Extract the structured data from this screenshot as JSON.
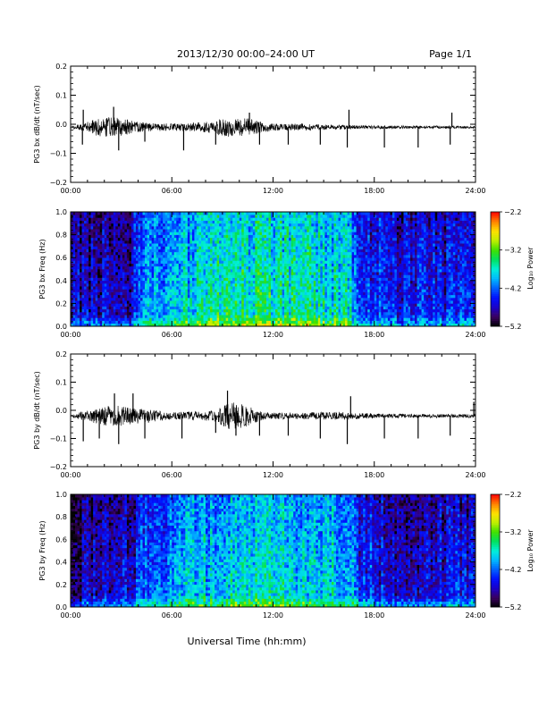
{
  "header": {
    "date_range": "2013/12/30  00:00–24:00 UT",
    "page": "Page 1/1"
  },
  "xlabel": "Universal Time (hh:mm)",
  "colors": {
    "axis": "#000000",
    "trace": "#000000",
    "background": "#ffffff"
  },
  "colorscale": [
    "#000000",
    "#3a0060",
    "#1a00c8",
    "#0010ff",
    "#0060ff",
    "#00b8ff",
    "#00f0d8",
    "#00e060",
    "#40e000",
    "#c0f000",
    "#ffe000",
    "#ff8000",
    "#ff0000"
  ],
  "chart_data": [
    {
      "type": "line",
      "ylabel": "PG3 bx dB/dt (nT/sec)",
      "x_ticks": [
        "00:00",
        "06:00",
        "12:00",
        "18:00",
        "24:00"
      ],
      "xlim": [
        0,
        24
      ],
      "ylim": [
        -0.2,
        0.2
      ],
      "y_ticks": [
        "0.2",
        "0.1",
        "0.0",
        "−0.1",
        "−0.2"
      ],
      "baseline": -0.01,
      "noise_envelope": [
        {
          "x": 0.0,
          "amp": 0.004
        },
        {
          "x": 0.7,
          "amp": 0.012
        },
        {
          "x": 1.5,
          "amp": 0.03
        },
        {
          "x": 2.5,
          "amp": 0.035
        },
        {
          "x": 3.5,
          "amp": 0.025
        },
        {
          "x": 4.5,
          "amp": 0.015
        },
        {
          "x": 6.0,
          "amp": 0.012
        },
        {
          "x": 8.0,
          "amp": 0.018
        },
        {
          "x": 9.5,
          "amp": 0.035
        },
        {
          "x": 10.5,
          "amp": 0.03
        },
        {
          "x": 12.0,
          "amp": 0.012
        },
        {
          "x": 14.0,
          "amp": 0.012
        },
        {
          "x": 16.0,
          "amp": 0.008
        },
        {
          "x": 18.0,
          "amp": 0.006
        },
        {
          "x": 24.0,
          "amp": 0.004
        }
      ],
      "spikes": [
        {
          "x": 0.7,
          "y": -0.07
        },
        {
          "x": 0.75,
          "y": 0.05
        },
        {
          "x": 2.55,
          "y": 0.06
        },
        {
          "x": 2.85,
          "y": -0.09
        },
        {
          "x": 4.4,
          "y": -0.06
        },
        {
          "x": 6.7,
          "y": -0.09
        },
        {
          "x": 8.6,
          "y": -0.07
        },
        {
          "x": 10.6,
          "y": 0.04
        },
        {
          "x": 11.2,
          "y": -0.07
        },
        {
          "x": 12.9,
          "y": -0.07
        },
        {
          "x": 14.8,
          "y": -0.07
        },
        {
          "x": 16.4,
          "y": -0.08
        },
        {
          "x": 16.5,
          "y": 0.05
        },
        {
          "x": 18.6,
          "y": -0.08
        },
        {
          "x": 20.6,
          "y": -0.08
        },
        {
          "x": 22.5,
          "y": -0.07
        },
        {
          "x": 22.6,
          "y": 0.04
        }
      ]
    },
    {
      "type": "heatmap",
      "ylabel": "PG3 bx Freq (Hz)",
      "colorbar_label": "Log₁₀ Power",
      "x_ticks": [
        "00:00",
        "06:00",
        "12:00",
        "18:00",
        "24:00"
      ],
      "xlim": [
        0,
        24
      ],
      "ylim": [
        0,
        1.0
      ],
      "y_ticks": [
        "1.0",
        "0.8",
        "0.6",
        "0.4",
        "0.2",
        "0.0"
      ],
      "colorbar_range": [
        -5.2,
        -2.2
      ],
      "colorbar_ticks": [
        "−2.2",
        "−3.2",
        "−4.2",
        "−5.2"
      ],
      "power_profile": [
        {
          "x": 0.0,
          "level": -4.7
        },
        {
          "x": 3.5,
          "level": -4.6
        },
        {
          "x": 4.0,
          "level": -4.1
        },
        {
          "x": 6.0,
          "level": -3.9
        },
        {
          "x": 9.0,
          "level": -3.55
        },
        {
          "x": 12.0,
          "level": -3.55
        },
        {
          "x": 16.5,
          "level": -3.7
        },
        {
          "x": 17.0,
          "level": -4.2
        },
        {
          "x": 20.0,
          "level": -4.5
        },
        {
          "x": 24.0,
          "level": -4.4
        }
      ]
    },
    {
      "type": "line",
      "ylabel": "PG3 by dB/dt (nT/sec)",
      "x_ticks": [
        "00:00",
        "06:00",
        "12:00",
        "18:00",
        "24:00"
      ],
      "xlim": [
        0,
        24
      ],
      "ylim": [
        -0.2,
        0.2
      ],
      "y_ticks": [
        "0.2",
        "0.1",
        "0.0",
        "−0.1",
        "−0.2"
      ],
      "baseline": -0.02,
      "noise_envelope": [
        {
          "x": 0.0,
          "amp": 0.005
        },
        {
          "x": 1.0,
          "amp": 0.02
        },
        {
          "x": 2.5,
          "amp": 0.04
        },
        {
          "x": 3.5,
          "amp": 0.03
        },
        {
          "x": 4.5,
          "amp": 0.025
        },
        {
          "x": 6.0,
          "amp": 0.012
        },
        {
          "x": 8.5,
          "amp": 0.02
        },
        {
          "x": 9.5,
          "amp": 0.05
        },
        {
          "x": 10.3,
          "amp": 0.04
        },
        {
          "x": 11.5,
          "amp": 0.012
        },
        {
          "x": 14.0,
          "amp": 0.012
        },
        {
          "x": 16.0,
          "amp": 0.015
        },
        {
          "x": 18.0,
          "amp": 0.008
        },
        {
          "x": 24.0,
          "amp": 0.006
        }
      ],
      "spikes": [
        {
          "x": 0.75,
          "y": -0.11
        },
        {
          "x": 1.7,
          "y": -0.1
        },
        {
          "x": 2.6,
          "y": 0.06
        },
        {
          "x": 2.85,
          "y": -0.12
        },
        {
          "x": 3.7,
          "y": 0.06
        },
        {
          "x": 4.4,
          "y": -0.1
        },
        {
          "x": 6.6,
          "y": -0.1
        },
        {
          "x": 8.6,
          "y": -0.08
        },
        {
          "x": 9.3,
          "y": 0.07
        },
        {
          "x": 9.8,
          "y": -0.09
        },
        {
          "x": 11.2,
          "y": -0.09
        },
        {
          "x": 12.9,
          "y": -0.09
        },
        {
          "x": 14.8,
          "y": -0.1
        },
        {
          "x": 16.4,
          "y": -0.12
        },
        {
          "x": 16.6,
          "y": 0.05
        },
        {
          "x": 18.6,
          "y": -0.1
        },
        {
          "x": 20.6,
          "y": -0.1
        },
        {
          "x": 22.5,
          "y": -0.09
        },
        {
          "x": 23.9,
          "y": 0.03
        }
      ]
    },
    {
      "type": "heatmap",
      "ylabel": "PG3 by Freq (Hz)",
      "colorbar_label": "Log₁₀ Power",
      "x_ticks": [
        "00:00",
        "06:00",
        "12:00",
        "18:00",
        "24:00"
      ],
      "xlim": [
        0,
        24
      ],
      "ylim": [
        0,
        1.0
      ],
      "y_ticks": [
        "1.0",
        "0.8",
        "0.6",
        "0.4",
        "0.2",
        "0.0"
      ],
      "colorbar_range": [
        -5.2,
        -2.2
      ],
      "colorbar_ticks": [
        "−2.2",
        "−3.2",
        "−4.2",
        "−5.2"
      ],
      "power_profile": [
        {
          "x": 0.0,
          "level": -4.8
        },
        {
          "x": 3.5,
          "level": -4.6
        },
        {
          "x": 4.5,
          "level": -4.2
        },
        {
          "x": 6.0,
          "level": -4.0
        },
        {
          "x": 9.0,
          "level": -3.75
        },
        {
          "x": 12.0,
          "level": -3.7
        },
        {
          "x": 16.5,
          "level": -3.8
        },
        {
          "x": 17.0,
          "level": -4.3
        },
        {
          "x": 20.0,
          "level": -4.6
        },
        {
          "x": 24.0,
          "level": -4.5
        }
      ]
    }
  ]
}
